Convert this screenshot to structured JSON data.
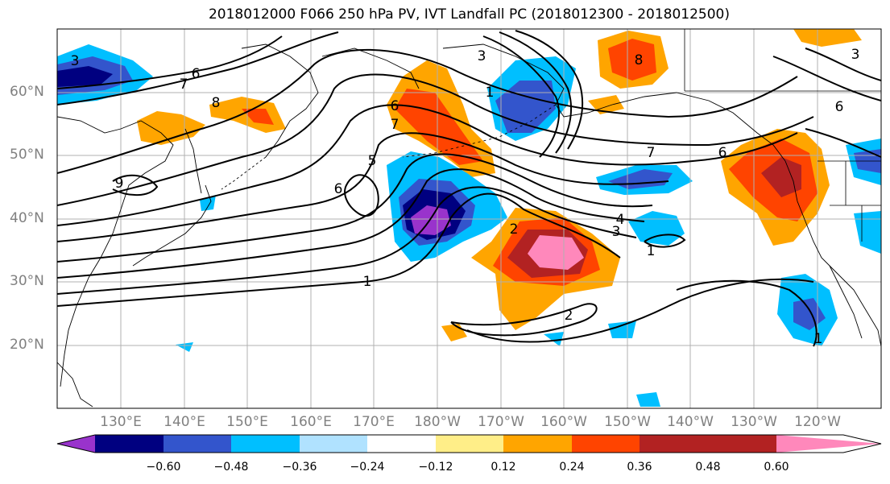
{
  "title": "2018012000 F066 250 hPa PV, IVT Landfall PC (2018012300 - 2018012500)",
  "lat_labels": [
    "60°N",
    "50°N",
    "40°N",
    "30°N",
    "20°N"
  ],
  "lon_labels": [
    "130°E",
    "140°E",
    "150°E",
    "160°E",
    "170°E",
    "180°W",
    "170°W",
    "160°W",
    "150°W",
    "140°W",
    "130°W",
    "120°W"
  ],
  "contour_labels": [
    "3",
    "6",
    "7",
    "8",
    "9",
    "5",
    "6",
    "1",
    "7",
    "6",
    "8",
    "3",
    "1",
    "7",
    "6",
    "2",
    "3",
    "4",
    "1",
    "2",
    "1",
    "6",
    "3"
  ],
  "colorbar": {
    "colors": [
      "#9933cc",
      "#000080",
      "#3355cc",
      "#00bfff",
      "#b0e2ff",
      "#ffffff",
      "#ffee88",
      "#ffa500",
      "#ff4400",
      "#b22222",
      "#ff88bb"
    ],
    "ticks": [
      "−0.60",
      "−0.48",
      "−0.36",
      "−0.24",
      "−0.12",
      "0.12",
      "0.24",
      "0.36",
      "0.48",
      "0.60"
    ]
  }
}
